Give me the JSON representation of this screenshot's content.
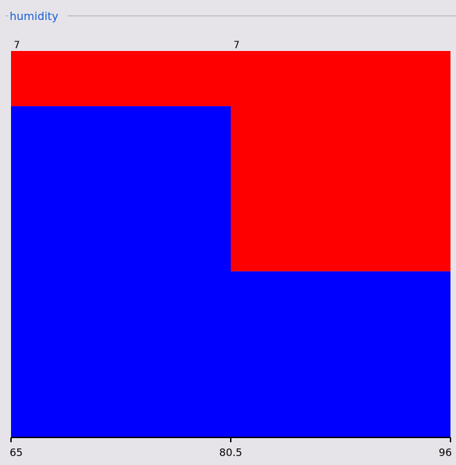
{
  "panel": {
    "title": "humidity"
  },
  "chart_data": {
    "type": "bar",
    "title": "humidity",
    "x_ticks": [
      "65",
      "80.5",
      "96"
    ],
    "bins": [
      {
        "x0": 65,
        "x1": 80.5,
        "count_label": "7",
        "class_fractions": [
          0.857,
          0.143
        ]
      },
      {
        "x0": 80.5,
        "x1": 96,
        "count_label": "7",
        "class_fractions": [
          0.429,
          0.571
        ]
      }
    ],
    "class_colors": [
      "#0000ff",
      "#ff0000"
    ],
    "xlim": [
      65,
      96
    ]
  }
}
